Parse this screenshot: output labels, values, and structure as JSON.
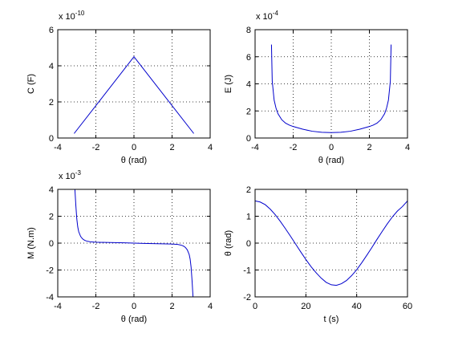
{
  "chart_data": [
    {
      "type": "line",
      "xlabel": "θ (rad)",
      "ylabel": "C (F)",
      "multiplier": {
        "base": "x 10",
        "exponent": "-10"
      },
      "xlim": [
        -4,
        4
      ],
      "ylim": [
        0,
        6
      ],
      "xticks": [
        "-4",
        "-2",
        "0",
        "2",
        "4"
      ],
      "yticks": [
        "0",
        "2",
        "4",
        "6"
      ],
      "grid": true,
      "line_color": "#0000cc",
      "series": [
        {
          "x": [
            -3.14,
            0,
            3.14
          ],
          "y": [
            0.25,
            4.5,
            0.25
          ]
        }
      ]
    },
    {
      "type": "line",
      "xlabel": "θ (rad)",
      "ylabel": "E (J)",
      "multiplier": {
        "base": "x 10",
        "exponent": "-4"
      },
      "xlim": [
        -4,
        4
      ],
      "ylim": [
        0,
        8
      ],
      "xticks": [
        "-4",
        "-2",
        "0",
        "2",
        "4"
      ],
      "yticks": [
        "0",
        "2",
        "4",
        "6",
        "8"
      ],
      "grid": true,
      "line_color": "#0000cc",
      "series": [
        {
          "x": [
            -3.14,
            -3.1,
            -3.0,
            -2.9,
            -2.8,
            -2.6,
            -2.4,
            -2.2,
            -2.0,
            -1.5,
            -1.0,
            -0.5,
            0,
            0.5,
            1.0,
            1.5,
            2.0,
            2.2,
            2.4,
            2.6,
            2.8,
            2.9,
            3.0,
            3.1,
            3.14
          ],
          "y": [
            6.9,
            4.2,
            2.8,
            2.2,
            1.8,
            1.35,
            1.1,
            0.95,
            0.85,
            0.65,
            0.5,
            0.42,
            0.4,
            0.42,
            0.5,
            0.65,
            0.85,
            0.95,
            1.1,
            1.35,
            1.8,
            2.2,
            2.8,
            4.2,
            6.9
          ]
        }
      ]
    },
    {
      "type": "line",
      "xlabel": "θ (rad)",
      "ylabel": "M (N.m)",
      "multiplier": {
        "base": "x 10",
        "exponent": "-3"
      },
      "xlim": [
        -4,
        4
      ],
      "ylim": [
        -4,
        4
      ],
      "xticks": [
        "-4",
        "-2",
        "0",
        "2",
        "4"
      ],
      "yticks": [
        "-4",
        "-2",
        "0",
        "2",
        "4"
      ],
      "grid": true,
      "line_color": "#0000cc",
      "series": [
        {
          "x": [
            -3.1,
            -3.05,
            -3.0,
            -2.95,
            -2.9,
            -2.8,
            -2.7,
            -2.6,
            -2.5,
            -2.3,
            -2.0,
            -1.5,
            -1.0,
            -0.5,
            0,
            0.5,
            1.0,
            1.5,
            2.0,
            2.3,
            2.5,
            2.6,
            2.7,
            2.8,
            2.9,
            2.95,
            3.0,
            3.05,
            3.1
          ],
          "y": [
            4.0,
            2.8,
            1.8,
            1.2,
            0.85,
            0.5,
            0.32,
            0.22,
            0.16,
            0.1,
            0.07,
            0.05,
            0.04,
            0.02,
            0,
            -0.02,
            -0.04,
            -0.05,
            -0.07,
            -0.1,
            -0.16,
            -0.22,
            -0.32,
            -0.5,
            -0.85,
            -1.2,
            -1.8,
            -2.8,
            -4.0
          ]
        }
      ]
    },
    {
      "type": "line",
      "xlabel": "t (s)",
      "ylabel": "θ (rad)",
      "xlim": [
        0,
        60
      ],
      "ylim": [
        -2,
        2
      ],
      "xticks": [
        "0",
        "20",
        "40",
        "60"
      ],
      "yticks": [
        "-2",
        "-1",
        "0",
        "1",
        "2"
      ],
      "grid": true,
      "line_color": "#0000cc",
      "series": [
        {
          "x": [
            0,
            2,
            4,
            6,
            8,
            10,
            12,
            14,
            16,
            18,
            20,
            22,
            24,
            26,
            28,
            30,
            32,
            34,
            36,
            38,
            40,
            42,
            44,
            46,
            48,
            50,
            52,
            54,
            56,
            58,
            60
          ],
          "y": [
            1.57,
            1.53,
            1.43,
            1.26,
            1.05,
            0.8,
            0.53,
            0.25,
            -0.04,
            -0.33,
            -0.61,
            -0.87,
            -1.1,
            -1.3,
            -1.46,
            -1.55,
            -1.57,
            -1.51,
            -1.39,
            -1.21,
            -0.99,
            -0.73,
            -0.45,
            -0.16,
            0.14,
            0.43,
            0.71,
            0.97,
            1.19,
            1.36,
            1.57
          ]
        }
      ]
    }
  ]
}
